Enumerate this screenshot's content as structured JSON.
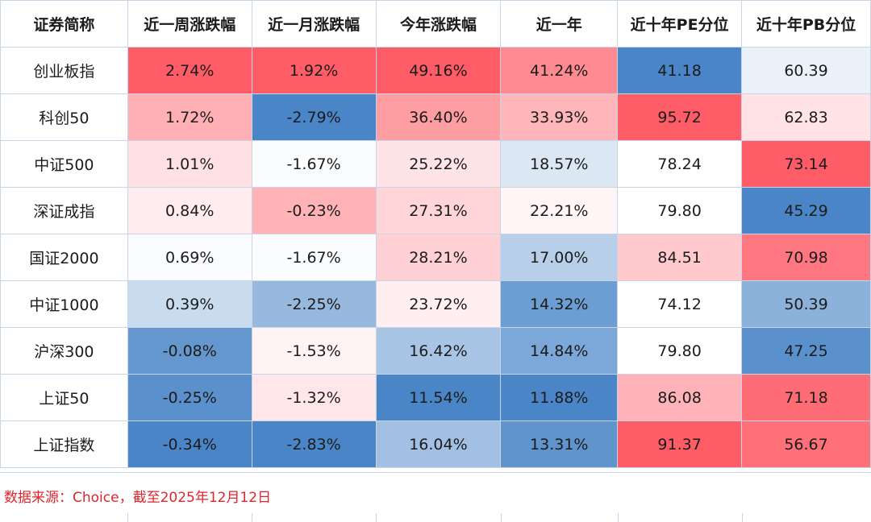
{
  "table": {
    "headers": [
      "证券简称",
      "近一周涨跌幅",
      "近一月涨跌幅",
      "今年涨跌幅",
      "近一年",
      "近十年PE分位",
      "近十年PB分位"
    ],
    "rows": [
      {
        "name": "创业板指",
        "cells": [
          {
            "text": "2.74%",
            "bg": "#fe5c66"
          },
          {
            "text": "1.92%",
            "bg": "#fe5c66"
          },
          {
            "text": "49.16%",
            "bg": "#fe5c66"
          },
          {
            "text": "41.24%",
            "bg": "#fe8b91"
          },
          {
            "text": "41.18",
            "bg": "#4a86c7"
          },
          {
            "text": "60.39",
            "bg": "#ebf1f9"
          }
        ]
      },
      {
        "name": "科创50",
        "cells": [
          {
            "text": "1.72%",
            "bg": "#ffb0b5"
          },
          {
            "text": "-2.79%",
            "bg": "#4a86c7"
          },
          {
            "text": "36.40%",
            "bg": "#fe9ea3"
          },
          {
            "text": "33.93%",
            "bg": "#ffb6ba"
          },
          {
            "text": "95.72",
            "bg": "#fe5c66"
          },
          {
            "text": "62.83",
            "bg": "#ffe3e5"
          }
        ]
      },
      {
        "name": "中证500",
        "cells": [
          {
            "text": "1.01%",
            "bg": "#ffe1e4"
          },
          {
            "text": "-1.67%",
            "bg": "#fbfcfe"
          },
          {
            "text": "25.22%",
            "bg": "#ffe4e7"
          },
          {
            "text": "18.57%",
            "bg": "#dce7f4"
          },
          {
            "text": "78.24",
            "bg": "#ffffff"
          },
          {
            "text": "73.14",
            "bg": "#fe5c66"
          }
        ]
      },
      {
        "name": "深证成指",
        "cells": [
          {
            "text": "0.84%",
            "bg": "#ffecee"
          },
          {
            "text": "-0.23%",
            "bg": "#ffb3b7"
          },
          {
            "text": "27.31%",
            "bg": "#ffd5d8"
          },
          {
            "text": "22.21%",
            "bg": "#fff5f6"
          },
          {
            "text": "79.80",
            "bg": "#ffffff"
          },
          {
            "text": "45.29",
            "bg": "#4a86c7"
          }
        ]
      },
      {
        "name": "国证2000",
        "cells": [
          {
            "text": "0.69%",
            "bg": "#fafbfe"
          },
          {
            "text": "-1.67%",
            "bg": "#fbfcfe"
          },
          {
            "text": "28.21%",
            "bg": "#ffd0d4"
          },
          {
            "text": "17.00%",
            "bg": "#b8cfe9"
          },
          {
            "text": "84.51",
            "bg": "#ffc9cd"
          },
          {
            "text": "70.98",
            "bg": "#fe7780"
          }
        ]
      },
      {
        "name": "中证1000",
        "cells": [
          {
            "text": "0.39%",
            "bg": "#c9dbef"
          },
          {
            "text": "-2.25%",
            "bg": "#97b9de"
          },
          {
            "text": "23.72%",
            "bg": "#ffeff1"
          },
          {
            "text": "14.32%",
            "bg": "#6c9ed3"
          },
          {
            "text": "74.12",
            "bg": "#ffffff"
          },
          {
            "text": "50.39",
            "bg": "#8cb1da"
          }
        ]
      },
      {
        "name": "沪深300",
        "cells": [
          {
            "text": "-0.08%",
            "bg": "#6597cf"
          },
          {
            "text": "-1.53%",
            "bg": "#fff3f4"
          },
          {
            "text": "16.42%",
            "bg": "#a8c5e5"
          },
          {
            "text": "14.84%",
            "bg": "#7ba8d8"
          },
          {
            "text": "79.80",
            "bg": "#ffffff"
          },
          {
            "text": "47.25",
            "bg": "#5a91cc"
          }
        ]
      },
      {
        "name": "上证50",
        "cells": [
          {
            "text": "-0.25%",
            "bg": "#5a90cb"
          },
          {
            "text": "-1.32%",
            "bg": "#ffe6e8"
          },
          {
            "text": "11.54%",
            "bg": "#4a86c7"
          },
          {
            "text": "11.88%",
            "bg": "#4a86c7"
          },
          {
            "text": "86.08",
            "bg": "#ffb2b7"
          },
          {
            "text": "71.18",
            "bg": "#fe6d76"
          }
        ]
      },
      {
        "name": "上证指数",
        "cells": [
          {
            "text": "-0.34%",
            "bg": "#4a86c7"
          },
          {
            "text": "-2.83%",
            "bg": "#4a86c7"
          },
          {
            "text": "16.04%",
            "bg": "#a1c0e3"
          },
          {
            "text": "13.31%",
            "bg": "#5f94cd"
          },
          {
            "text": "91.37",
            "bg": "#fe5c66"
          },
          {
            "text": "56.67",
            "bg": "#ff7079"
          }
        ]
      }
    ]
  },
  "footer": {
    "source_note": "数据来源：Choice，截至2025年12月12日"
  },
  "colors": {
    "positive_max": "#fe5c66",
    "negative_max": "#4a86c7",
    "source_text": "#e0242c",
    "grid_line": "#c9d5e6"
  }
}
